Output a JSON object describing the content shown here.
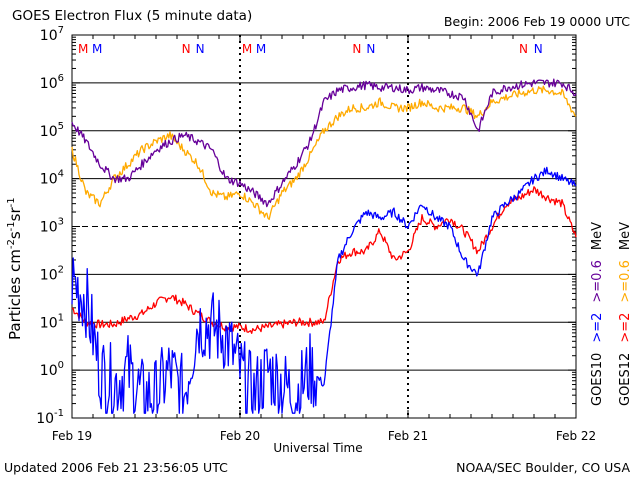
{
  "title": "GOES Electron Flux (5 minute data)",
  "begin": "Begin: 2006 Feb 19 0000 UTC",
  "updated": "Updated 2006 Feb 21 23:56:05 UTC",
  "credit": "NOAA/SEC Boulder, CO USA",
  "colors": {
    "goes12_high": "#ff0000",
    "goes10_high": "#0000ff",
    "goes12_low": "#ffaa00",
    "goes10_low": "#660099"
  },
  "chart_data": {
    "type": "line",
    "title": "GOES Electron Flux (5 minute data)",
    "xlabel": "Universal Time",
    "ylabel": "Particles cm-2s-1sr-1",
    "y_scale": "log",
    "ylim": [
      0.1,
      10000000
    ],
    "y_ticks": [
      "10^-1",
      "10^0",
      "10^1",
      "10^2",
      "10^3",
      "10^4",
      "10^5",
      "10^6",
      "10^7"
    ],
    "x_ticks": [
      "Feb 19",
      "Feb 20",
      "Feb 21",
      "Feb 22"
    ],
    "xlim": [
      "2006-02-19 00:00",
      "2006-02-22 00:00"
    ],
    "threshold_line": 1000,
    "noon_midnight_markers": {
      "labels_M": [
        "M",
        "M",
        "M",
        "M"
      ],
      "labels_N": [
        "N",
        "N",
        "N",
        "N",
        "N",
        "N"
      ],
      "M_colors": [
        "#ff0000",
        "#0000ff",
        "#ff0000",
        "#0000ff"
      ],
      "N_colors": [
        "#ff0000",
        "#0000ff",
        "#ff0000",
        "#0000ff",
        "#ff0000",
        "#0000ff"
      ]
    },
    "series": [
      {
        "name": ">=2 MeV",
        "satellite": "GOES12",
        "color": "#ff0000",
        "x_hours": [
          0,
          2,
          4,
          6,
          8,
          10,
          12,
          14,
          16,
          18,
          20,
          22,
          24,
          26,
          28,
          30,
          32,
          34,
          36,
          38,
          40,
          42,
          44,
          46,
          48,
          50,
          52,
          54,
          56,
          58,
          60,
          62,
          64,
          66,
          68,
          70,
          72
        ],
        "values": [
          20,
          10,
          9,
          9,
          12,
          15,
          25,
          35,
          25,
          15,
          10,
          8,
          8,
          7,
          8,
          9,
          10,
          10,
          10,
          200,
          300,
          300,
          800,
          200,
          300,
          1500,
          1000,
          1500,
          800,
          300,
          1000,
          3000,
          4000,
          6000,
          4000,
          3000,
          600
        ]
      },
      {
        "name": ">=2 MeV",
        "satellite": "GOES10",
        "color": "#0000ff",
        "x_hours": [
          0,
          2,
          4,
          6,
          8,
          10,
          12,
          14,
          16,
          18,
          20,
          22,
          24,
          26,
          28,
          30,
          32,
          34,
          36,
          38,
          40,
          42,
          44,
          46,
          48,
          50,
          52,
          54,
          56,
          58,
          60,
          62,
          64,
          66,
          68,
          70,
          72
        ],
        "values": [
          80,
          30,
          1,
          0.5,
          1,
          0.3,
          0.3,
          1,
          0.3,
          10,
          8,
          5,
          1,
          0.3,
          1,
          0.5,
          0.3,
          1,
          0.5,
          200,
          800,
          2000,
          1500,
          2000,
          1000,
          3000,
          1500,
          1000,
          200,
          100,
          1500,
          3000,
          5000,
          10000,
          15000,
          10000,
          7000
        ]
      },
      {
        "name": ">=0.6 MeV",
        "satellite": "GOES12",
        "color": "#ffaa00",
        "x_hours": [
          0,
          2,
          4,
          6,
          8,
          10,
          12,
          14,
          16,
          18,
          20,
          22,
          24,
          26,
          28,
          30,
          32,
          34,
          36,
          38,
          40,
          42,
          44,
          46,
          48,
          50,
          52,
          54,
          56,
          58,
          60,
          62,
          64,
          66,
          68,
          70,
          72
        ],
        "values": [
          40000,
          5000,
          3000,
          10000,
          20000,
          40000,
          60000,
          80000,
          40000,
          20000,
          5000,
          4000,
          5000,
          3000,
          1500,
          5000,
          10000,
          30000,
          100000,
          200000,
          300000,
          300000,
          400000,
          300000,
          300000,
          400000,
          300000,
          300000,
          300000,
          200000,
          400000,
          500000,
          600000,
          700000,
          700000,
          600000,
          200000
        ]
      },
      {
        "name": ">=0.6 MeV",
        "satellite": "GOES10",
        "color": "#660099",
        "x_hours": [
          0,
          2,
          4,
          6,
          8,
          10,
          12,
          14,
          16,
          18,
          20,
          22,
          24,
          26,
          28,
          30,
          32,
          34,
          36,
          38,
          40,
          42,
          44,
          46,
          48,
          50,
          52,
          54,
          56,
          58,
          60,
          62,
          64,
          66,
          68,
          70,
          72
        ],
        "values": [
          150000,
          60000,
          20000,
          10000,
          10000,
          20000,
          40000,
          60000,
          80000,
          60000,
          40000,
          10000,
          8000,
          5000,
          3000,
          8000,
          20000,
          60000,
          400000,
          700000,
          800000,
          900000,
          800000,
          800000,
          700000,
          800000,
          700000,
          600000,
          500000,
          100000,
          600000,
          800000,
          900000,
          1000000,
          1000000,
          1000000,
          600000
        ]
      }
    ],
    "legend": {
      "right_labels": [
        {
          "text": "GOES10",
          "color": "#000000"
        },
        {
          "text": ">=2",
          "color": "#0000ff"
        },
        {
          "text": ">=0.6",
          "color": "#660099"
        },
        {
          "text": "MeV",
          "color": "#000000"
        },
        {
          "text": "GOES12",
          "color": "#000000"
        },
        {
          "text": ">=2",
          "color": "#ff0000"
        },
        {
          "text": ">=0.6",
          "color": "#ffaa00"
        },
        {
          "text": "MeV",
          "color": "#000000"
        }
      ]
    }
  }
}
